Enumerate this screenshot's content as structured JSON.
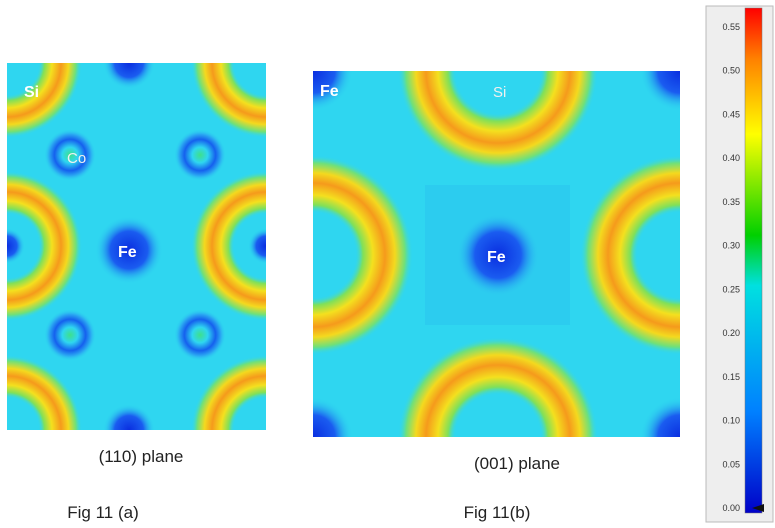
{
  "panels": [
    {
      "atoms": [
        "Si",
        "Co",
        "Fe"
      ],
      "plane": "(110) plane",
      "figure": "Fig 11 (a)"
    },
    {
      "atoms": [
        "Fe",
        "Si",
        "Fe"
      ],
      "plane": "(001) plane",
      "figure": "Fig 11(b)"
    }
  ],
  "colorbar": {
    "ticks": [
      "0.55",
      "0.50",
      "0.45",
      "0.40",
      "0.35",
      "0.30",
      "0.25",
      "0.20",
      "0.15",
      "0.10",
      "0.05",
      "0.00"
    ]
  }
}
